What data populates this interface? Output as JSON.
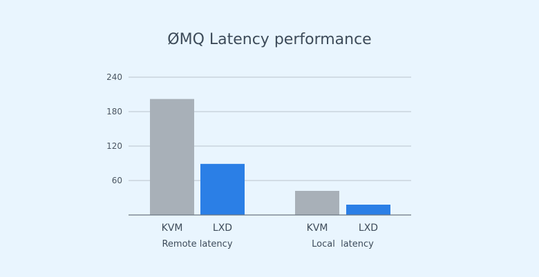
{
  "chart_data": {
    "type": "bar",
    "title": "ØMQ Latency performance",
    "groups": [
      {
        "label": "Remote latency",
        "bars": [
          {
            "category": "KVM",
            "value": 202,
            "color": "#a8b0b8"
          },
          {
            "category": "LXD",
            "value": 89,
            "color": "#2b7fe6"
          }
        ]
      },
      {
        "label": "Local  latency",
        "bars": [
          {
            "category": "KVM",
            "value": 42,
            "color": "#a8b0b8"
          },
          {
            "category": "LXD",
            "value": 18,
            "color": "#2b7fe6"
          }
        ]
      }
    ],
    "ylim": [
      0,
      240
    ],
    "yticks": [
      "60",
      "120",
      "180",
      "240"
    ],
    "grid": true,
    "legend": "none"
  }
}
